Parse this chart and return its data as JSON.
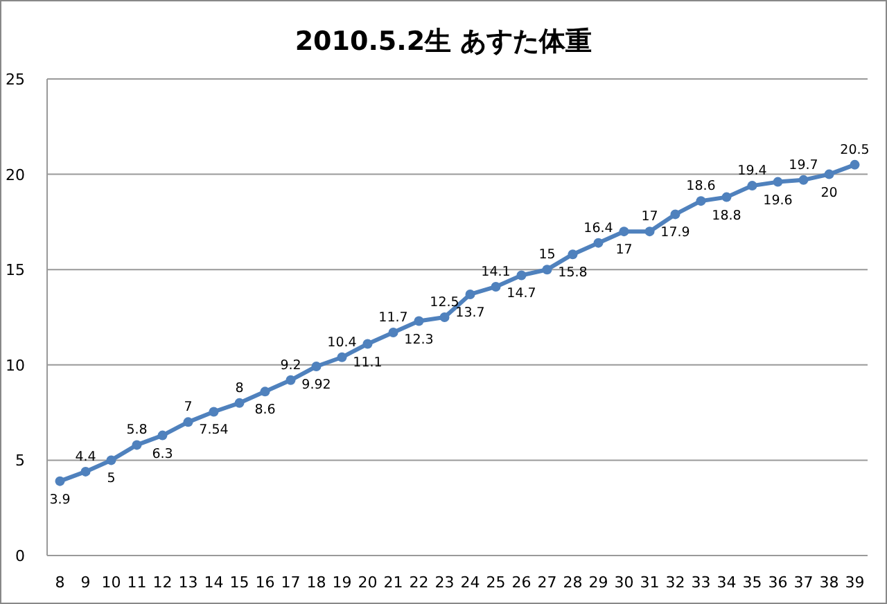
{
  "chart_data": {
    "type": "line",
    "title": "2010.5.2生 あすた体重",
    "categories": [
      "8",
      "9",
      "10",
      "11",
      "12",
      "13",
      "14",
      "15",
      "16",
      "17",
      "18",
      "19",
      "20",
      "21",
      "22",
      "23",
      "24",
      "25",
      "26",
      "27",
      "28",
      "29",
      "30",
      "31",
      "32",
      "33",
      "34",
      "35",
      "36",
      "37",
      "38",
      "39"
    ],
    "series": [
      {
        "color": "#4f81bd",
        "values": [
          3.9,
          4.4,
          5,
          5.8,
          6.3,
          7,
          7.54,
          8,
          8.6,
          9.2,
          9.92,
          10.4,
          11.1,
          11.7,
          12.3,
          12.5,
          13.7,
          14.1,
          14.7,
          15,
          15.8,
          16.4,
          17,
          17,
          17.9,
          18.6,
          18.8,
          19.4,
          19.6,
          19.7,
          20,
          20.5
        ]
      }
    ],
    "ylim": [
      0,
      25
    ],
    "yticks": [
      0,
      5,
      10,
      15,
      20,
      25
    ],
    "grid": "y",
    "marker": "circle",
    "line_style": "solid",
    "data_labels": true
  }
}
